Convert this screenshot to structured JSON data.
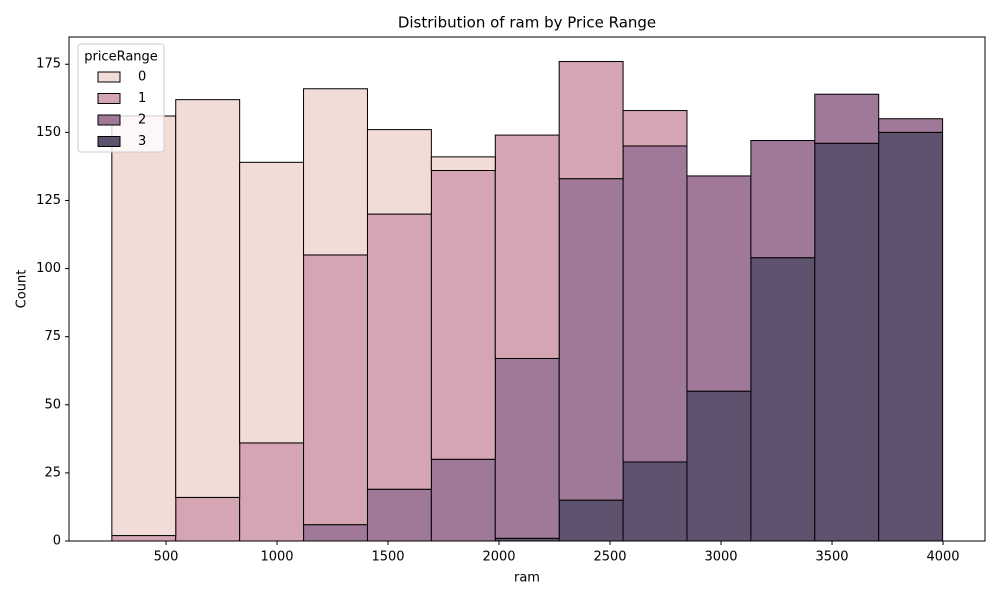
{
  "chart_data": {
    "type": "histogram",
    "title": "Distribution of ram by Price Range",
    "x_label": "ram",
    "y_label": "Count",
    "bins": [
      256,
      543.8,
      831.7,
      1119.5,
      1407.4,
      1695.2,
      1983.1,
      2270.9,
      2558.8,
      2846.6,
      3134.5,
      3422.3,
      3710.2,
      3998
    ],
    "stacked": true,
    "legend_title": "priceRange",
    "legend_position": "upper left",
    "series": [
      {
        "name": "0",
        "color": "#f2dcd8",
        "values": [
          154,
          146,
          103,
          61,
          31,
          5,
          0,
          0,
          0,
          0,
          0,
          0,
          0
        ]
      },
      {
        "name": "1",
        "color": "#d5a5b4",
        "values": [
          2,
          16,
          36,
          99,
          101,
          106,
          82,
          43,
          13,
          0,
          0,
          0,
          0
        ]
      },
      {
        "name": "2",
        "color": "#a07898",
        "values": [
          0,
          0,
          0,
          6,
          19,
          30,
          66,
          118,
          116,
          79,
          43,
          18,
          5
        ]
      },
      {
        "name": "3",
        "color": "#5f526e",
        "values": [
          0,
          0,
          0,
          0,
          0,
          0,
          1,
          15,
          29,
          55,
          104,
          146,
          150
        ]
      }
    ],
    "xlim": [
      63,
      4189
    ],
    "ylim": [
      0,
      185
    ],
    "xticks": [
      500,
      1000,
      1500,
      2000,
      2500,
      3000,
      3500,
      4000
    ],
    "yticks": [
      0,
      25,
      50,
      75,
      100,
      125,
      150,
      175
    ]
  }
}
